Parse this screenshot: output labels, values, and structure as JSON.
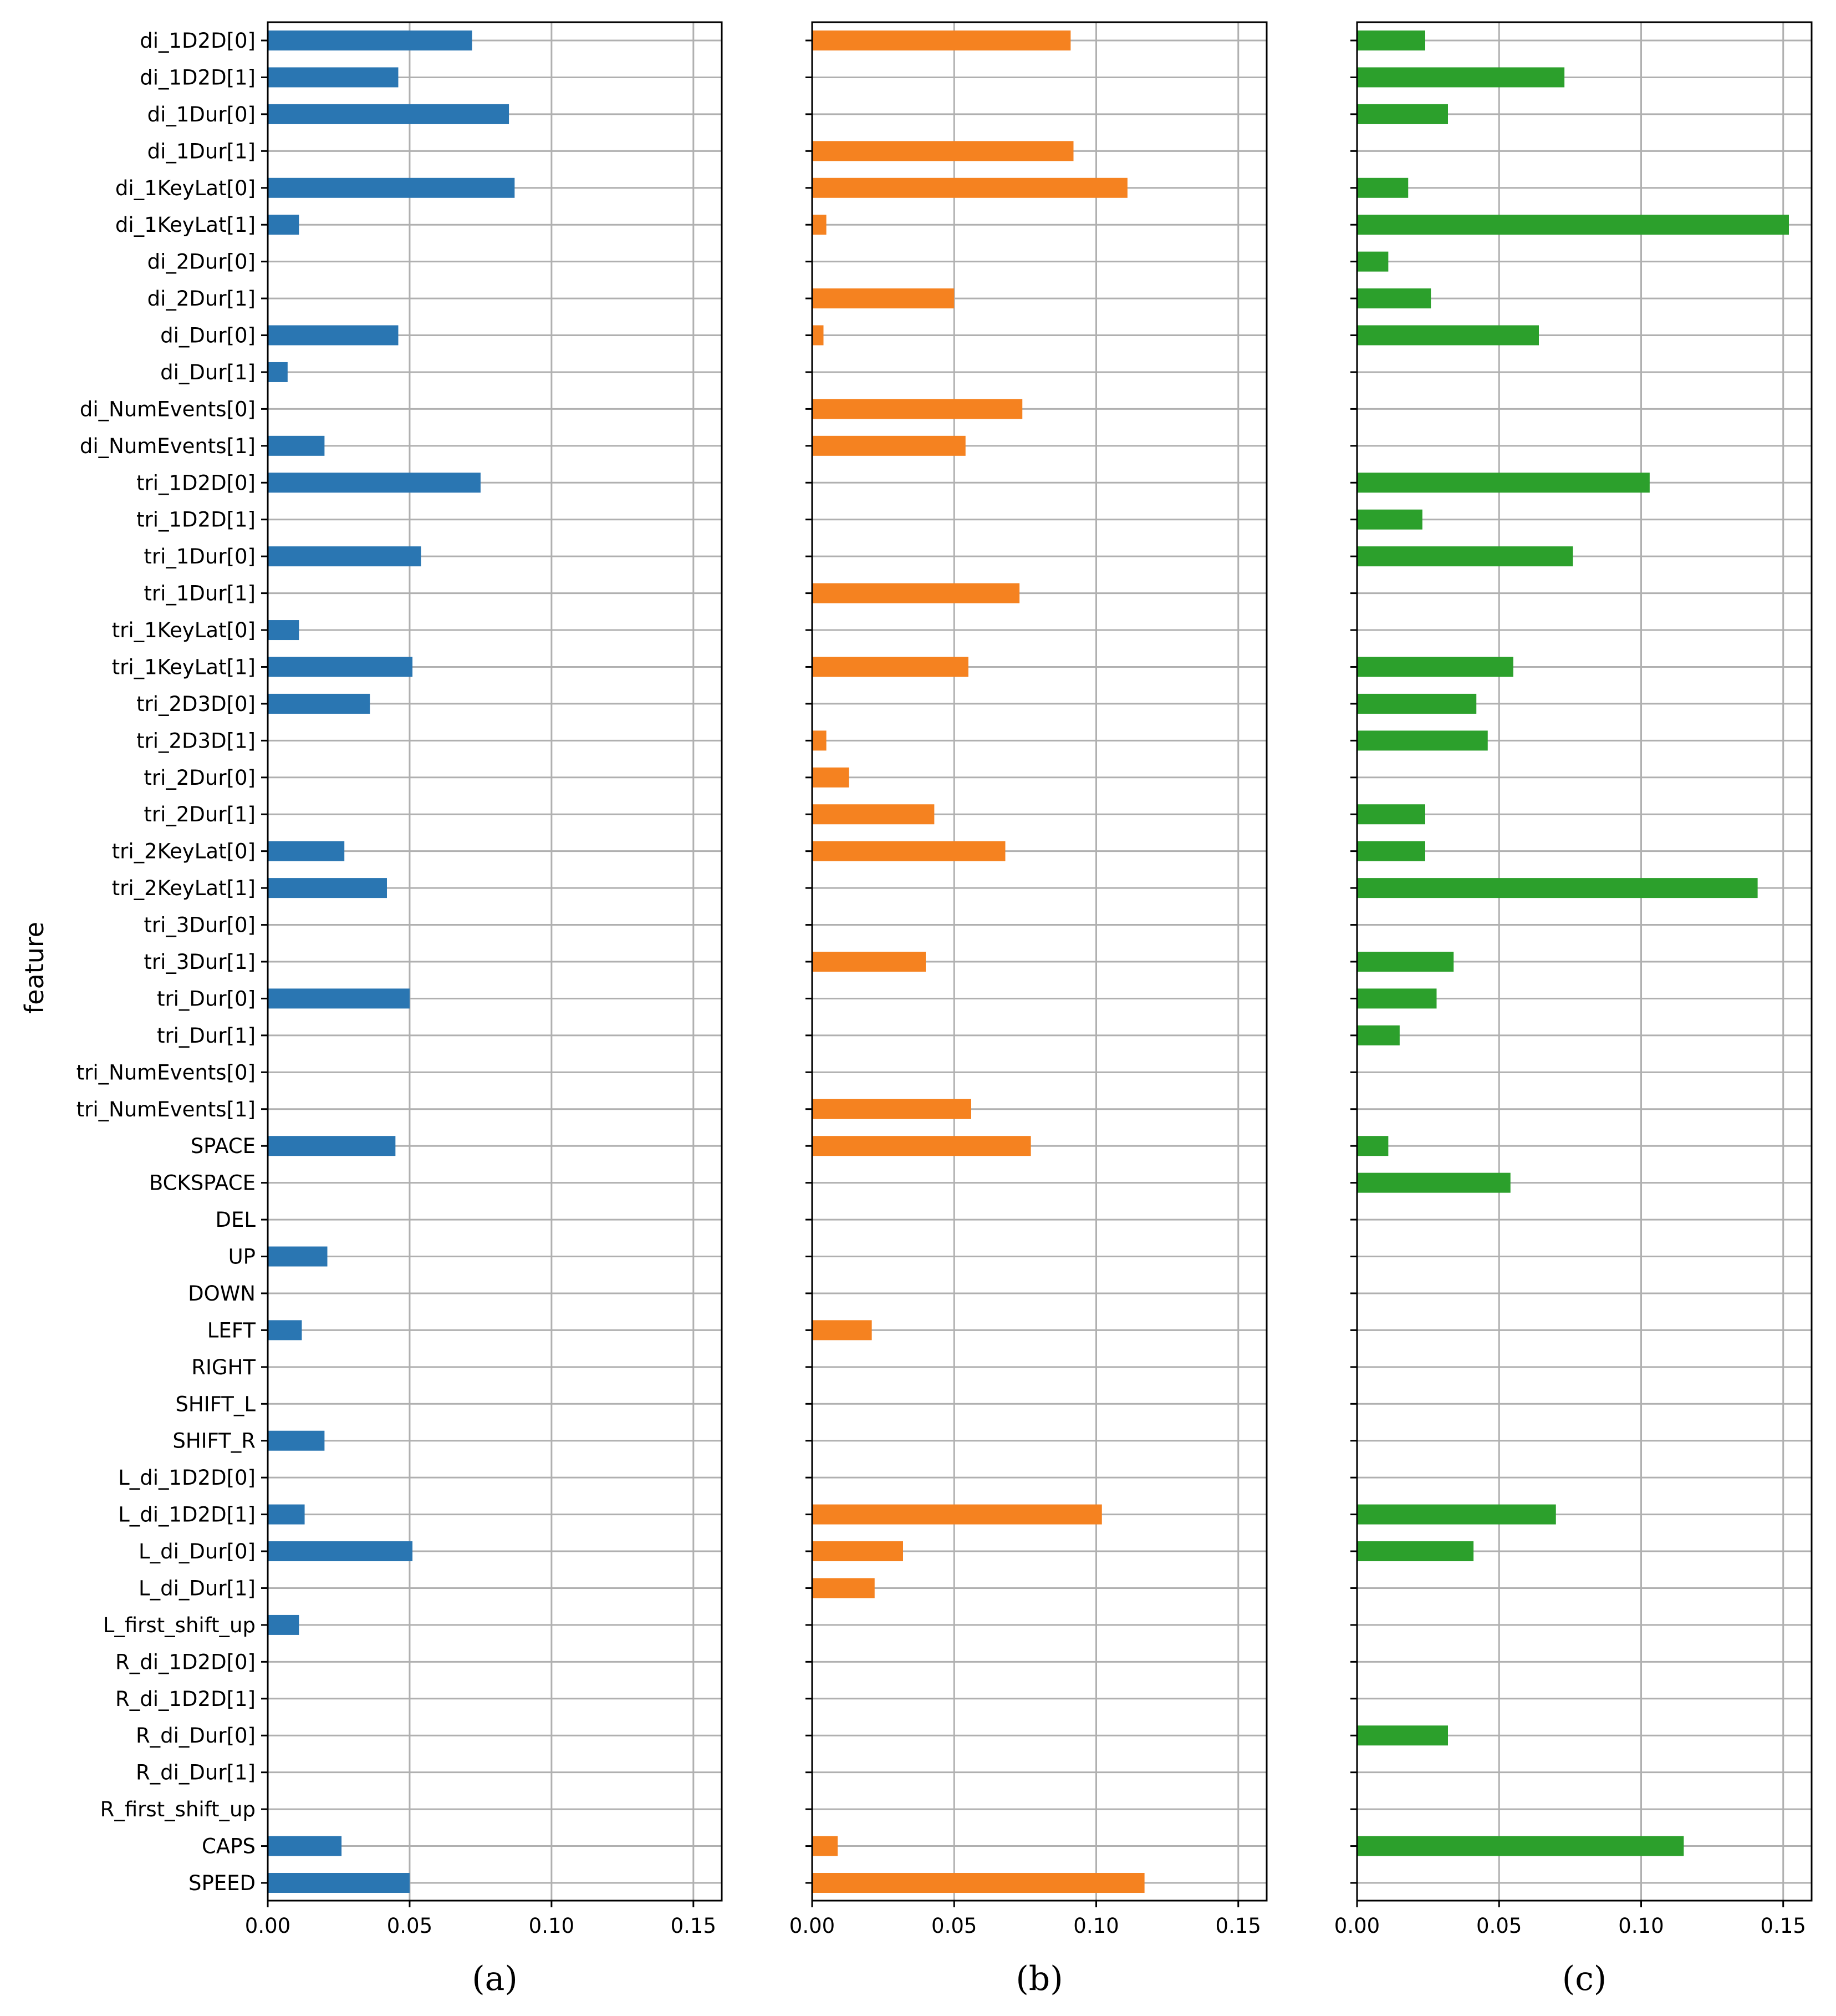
{
  "colors": {
    "series_a": "#2a76b2",
    "series_b": "#f58220",
    "series_c": "#2ca02c",
    "grid": "#b0b0b0",
    "axis": "#000000"
  },
  "chart_data": [
    {
      "type": "bar",
      "orientation": "horizontal",
      "caption": "(a)",
      "ylabel": "feature",
      "xlim": [
        0.0,
        0.16
      ],
      "xticks": [
        0.0,
        0.05,
        0.1,
        0.15
      ],
      "xtick_labels": [
        "0.00",
        "0.05",
        "0.10",
        "0.15"
      ],
      "grid": "x",
      "categories": [
        "di_1D2D[0]",
        "di_1D2D[1]",
        "di_1Dur[0]",
        "di_1Dur[1]",
        "di_1KeyLat[0]",
        "di_1KeyLat[1]",
        "di_2Dur[0]",
        "di_2Dur[1]",
        "di_Dur[0]",
        "di_Dur[1]",
        "di_NumEvents[0]",
        "di_NumEvents[1]",
        "tri_1D2D[0]",
        "tri_1D2D[1]",
        "tri_1Dur[0]",
        "tri_1Dur[1]",
        "tri_1KeyLat[0]",
        "tri_1KeyLat[1]",
        "tri_2D3D[0]",
        "tri_2D3D[1]",
        "tri_2Dur[0]",
        "tri_2Dur[1]",
        "tri_2KeyLat[0]",
        "tri_2KeyLat[1]",
        "tri_3Dur[0]",
        "tri_3Dur[1]",
        "tri_Dur[0]",
        "tri_Dur[1]",
        "tri_NumEvents[0]",
        "tri_NumEvents[1]",
        "SPACE",
        "BCKSPACE",
        "DEL",
        "UP",
        "DOWN",
        "LEFT",
        "RIGHT",
        "SHIFT_L",
        "SHIFT_R",
        "L_di_1D2D[0]",
        "L_di_1D2D[1]",
        "L_di_Dur[0]",
        "L_di_Dur[1]",
        "L_first_shift_up",
        "R_di_1D2D[0]",
        "R_di_1D2D[1]",
        "R_di_Dur[0]",
        "R_di_Dur[1]",
        "R_first_shift_up",
        "CAPS",
        "SPEED"
      ],
      "values": [
        0.072,
        0.046,
        0.085,
        0,
        0.087,
        0.011,
        0,
        0,
        0.046,
        0.007,
        0,
        0.02,
        0.075,
        0,
        0.054,
        0,
        0.011,
        0.051,
        0.036,
        0,
        0,
        0,
        0.027,
        0.042,
        0,
        0,
        0.05,
        0,
        0,
        0,
        0.045,
        0,
        0,
        0.021,
        0,
        0.012,
        0,
        0,
        0.02,
        0,
        0.013,
        0.051,
        0,
        0.011,
        0,
        0,
        0,
        0,
        0,
        0.026,
        0.05
      ]
    },
    {
      "type": "bar",
      "orientation": "horizontal",
      "caption": "(b)",
      "xlim": [
        0.0,
        0.16
      ],
      "xticks": [
        0.0,
        0.05,
        0.1,
        0.15
      ],
      "xtick_labels": [
        "0.00",
        "0.05",
        "0.10",
        "0.15"
      ],
      "grid": "x",
      "values": [
        0.091,
        0,
        0,
        0.092,
        0.111,
        0.005,
        0,
        0.05,
        0.004,
        0,
        0.074,
        0.054,
        0,
        0,
        0,
        0.073,
        0,
        0.055,
        0,
        0.005,
        0.013,
        0.043,
        0.068,
        0,
        0,
        0.04,
        0,
        0,
        0,
        0.056,
        0.077,
        0,
        0,
        0,
        0,
        0.021,
        0,
        0,
        0,
        0,
        0.102,
        0.032,
        0.022,
        0,
        0,
        0,
        0,
        0,
        0,
        0.009,
        0.117
      ]
    },
    {
      "type": "bar",
      "orientation": "horizontal",
      "caption": "(c)",
      "xlim": [
        0.0,
        0.16
      ],
      "xticks": [
        0.0,
        0.05,
        0.1,
        0.15
      ],
      "xtick_labels": [
        "0.00",
        "0.05",
        "0.10",
        "0.15"
      ],
      "grid": "x",
      "values": [
        0.024,
        0.073,
        0.032,
        0,
        0.018,
        0.152,
        0.011,
        0.026,
        0.064,
        0,
        0,
        0,
        0.103,
        0.023,
        0.076,
        0,
        0,
        0.055,
        0.042,
        0.046,
        0,
        0.024,
        0.024,
        0.141,
        0,
        0.034,
        0.028,
        0.015,
        0,
        0,
        0.011,
        0.054,
        0,
        0,
        0,
        0,
        0,
        0,
        0,
        0,
        0.07,
        0.041,
        0,
        0,
        0,
        0,
        0.032,
        0,
        0,
        0.115,
        0
      ]
    }
  ]
}
